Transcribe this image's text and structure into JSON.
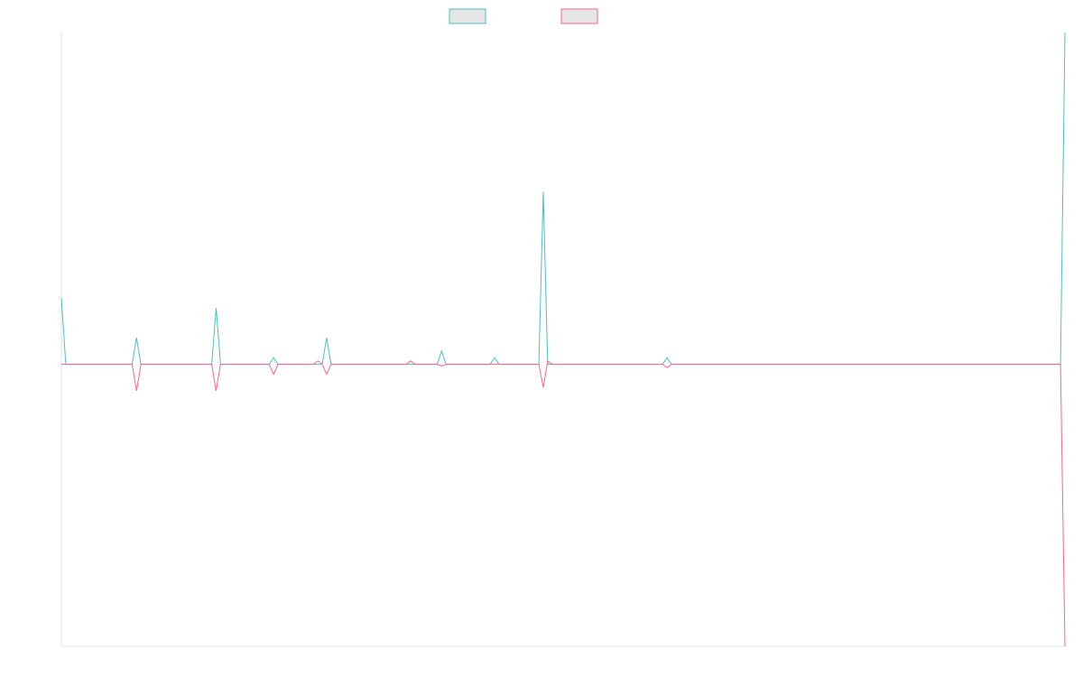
{
  "chart_data": {
    "type": "line",
    "x": [
      0,
      1,
      16,
      17,
      18,
      34,
      35,
      36,
      47,
      48,
      49,
      57,
      58,
      59,
      60,
      61,
      78,
      79,
      80,
      85,
      86,
      87,
      97,
      98,
      99,
      108,
      109,
      110,
      111,
      136,
      137,
      138,
      139,
      226,
      227
    ],
    "series": [
      {
        "color": "#4bc0c0",
        "values": [
          20,
          0,
          0,
          8,
          0,
          0,
          17,
          0,
          0,
          2,
          0,
          0,
          0,
          0,
          8,
          0,
          0,
          0,
          0,
          0,
          4,
          0,
          0,
          2,
          0,
          0,
          52,
          0,
          0,
          0,
          2,
          0,
          0,
          0,
          100
        ]
      },
      {
        "color": "#ff6384",
        "values": [
          0,
          0,
          0,
          -8,
          0,
          0,
          -8,
          0,
          0,
          -3,
          0,
          0,
          1,
          0,
          -3,
          0,
          0,
          1,
          0,
          0,
          -0.5,
          0,
          0,
          0,
          0,
          0,
          -7,
          1,
          0,
          0,
          -1,
          0,
          0,
          0,
          -85
        ]
      }
    ],
    "xlim": [
      0,
      227
    ],
    "ylim": [
      -85,
      100
    ],
    "legend": "top"
  }
}
